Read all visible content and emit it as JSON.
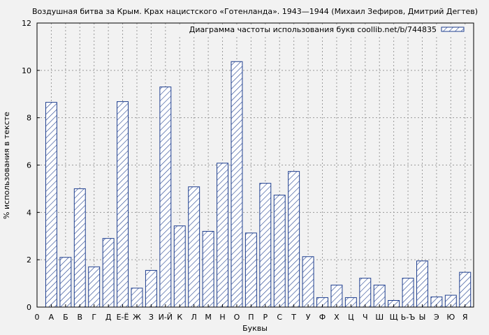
{
  "chart_data": {
    "type": "bar",
    "title": "Воздушная битва за Крым. Крах нацистского «Готенланда». 1943—1944 (Михаил Зефиров, Дмитрий Дегтев)",
    "xlabel": "Буквы",
    "ylabel": "% использования в тексте",
    "ylim": [
      0,
      12
    ],
    "yticks": [
      "0",
      "2",
      "4",
      "6",
      "8",
      "10",
      "12"
    ],
    "grid": true,
    "legend_position": "top-right",
    "categories": [
      "0",
      "А",
      "Б",
      "В",
      "Г",
      "Д",
      "Е-Ё",
      "Ж",
      "З",
      "И-Й",
      "К",
      "Л",
      "М",
      "Н",
      "О",
      "П",
      "Р",
      "С",
      "Т",
      "У",
      "Ф",
      "Х",
      "Ц",
      "Ч",
      "Ш",
      "Щ",
      "Ь-Ъ",
      "Ы",
      "Э",
      "Ю",
      "Я"
    ],
    "series": [
      {
        "name": "Диаграмма частоты использования букв coollib.net/b/744835",
        "color": "#1f3f8f",
        "values": [
          0,
          8.65,
          2.1,
          5.0,
          1.7,
          2.9,
          8.68,
          0.8,
          1.55,
          9.3,
          3.43,
          5.08,
          3.2,
          6.08,
          10.37,
          3.13,
          5.23,
          4.73,
          5.73,
          2.13,
          0.4,
          0.93,
          0.4,
          1.22,
          0.93,
          0.28,
          1.22,
          1.95,
          0.43,
          0.5,
          1.47
        ]
      }
    ]
  }
}
